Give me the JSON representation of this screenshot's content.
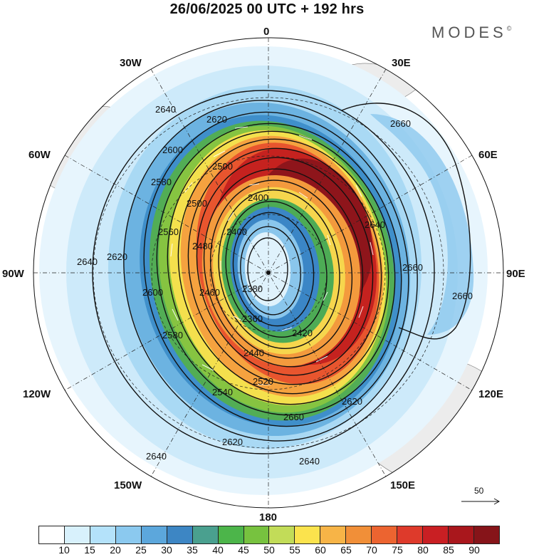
{
  "title": "26/06/2025  00 UTC  + 192 hrs",
  "logo": "MODES",
  "logo_mark": "©",
  "longitude_labels": {
    "n0": "0",
    "e30": "30E",
    "e60": "60E",
    "e90": "90E",
    "e120": "120E",
    "e150": "150E",
    "s180": "180",
    "w150": "150W",
    "w120": "120W",
    "w90": "90W",
    "w60": "60W",
    "w30": "30W"
  },
  "contour_labels": [
    "2640",
    "2620",
    "2600",
    "2580",
    "2560",
    "2500",
    "2480",
    "2460",
    "2440",
    "2420",
    "2400",
    "2380",
    "2360",
    "2520",
    "2540",
    "2660"
  ],
  "reference_vector": "50",
  "colorbar": {
    "colors": [
      "#ffffff",
      "#d8f1fc",
      "#b4e2fa",
      "#8bc9ef",
      "#5ca7dc",
      "#3d86c4",
      "#4aa08f",
      "#4cb54a",
      "#77c23f",
      "#c2dc58",
      "#fbe34d",
      "#f7b447",
      "#f18f38",
      "#ec6430",
      "#de3a2b",
      "#c91f23",
      "#a9171c",
      "#861419"
    ],
    "ticks": [
      "10",
      "15",
      "20",
      "25",
      "30",
      "35",
      "40",
      "45",
      "50",
      "55",
      "60",
      "65",
      "70",
      "75",
      "80",
      "85",
      "90"
    ]
  }
}
